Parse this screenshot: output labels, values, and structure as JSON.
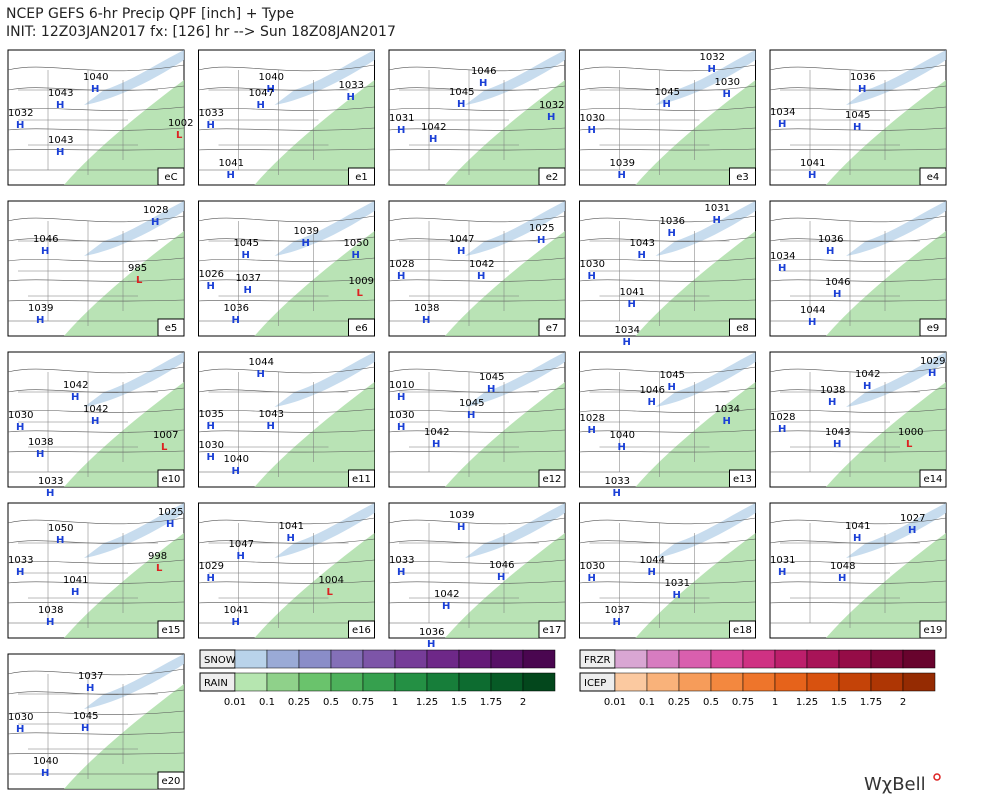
{
  "header": {
    "line1": "NCEP GEFS 6-hr Precip QPF [inch] + Type",
    "line2": "INIT: 12Z03JAN2017 fx: [126] hr --> Sun 18Z08JAN2017"
  },
  "panels": [
    {
      "name": "eC",
      "centers": [
        {
          "value": "1040",
          "symbol": "H"
        },
        {
          "value": "1043",
          "symbol": "H"
        },
        {
          "value": "1032",
          "symbol": "H"
        },
        {
          "value": "1043",
          "symbol": "H"
        },
        {
          "value": "1002",
          "symbol": "L"
        }
      ]
    },
    {
      "name": "e1",
      "centers": [
        {
          "value": "1040",
          "symbol": "H"
        },
        {
          "value": "1047",
          "symbol": "H"
        },
        {
          "value": "1033",
          "symbol": "H"
        },
        {
          "value": "1041",
          "symbol": "H"
        },
        {
          "value": "1033",
          "symbol": "H"
        }
      ]
    },
    {
      "name": "e2",
      "centers": [
        {
          "value": "1046",
          "symbol": "H"
        },
        {
          "value": "1045",
          "symbol": "H"
        },
        {
          "value": "1031",
          "symbol": "H"
        },
        {
          "value": "1042",
          "symbol": "H"
        },
        {
          "value": "1032",
          "symbol": "H"
        }
      ]
    },
    {
      "name": "e3",
      "centers": [
        {
          "value": "1032",
          "symbol": "H"
        },
        {
          "value": "1030",
          "symbol": "H"
        },
        {
          "value": "1045",
          "symbol": "H"
        },
        {
          "value": "1030",
          "symbol": "H"
        },
        {
          "value": "1039",
          "symbol": "H"
        }
      ]
    },
    {
      "name": "e4",
      "centers": [
        {
          "value": "1036",
          "symbol": "H"
        },
        {
          "value": "1045",
          "symbol": "H"
        },
        {
          "value": "1034",
          "symbol": "H"
        },
        {
          "value": "1041",
          "symbol": "H"
        }
      ]
    },
    {
      "name": "e5",
      "centers": [
        {
          "value": "1028",
          "symbol": "H"
        },
        {
          "value": "1046",
          "symbol": "H"
        },
        {
          "value": "1039",
          "symbol": "H"
        },
        {
          "value": "985",
          "symbol": "L"
        }
      ]
    },
    {
      "name": "e6",
      "centers": [
        {
          "value": "1039",
          "symbol": "H"
        },
        {
          "value": "1045",
          "symbol": "H"
        },
        {
          "value": "1050",
          "symbol": "H"
        },
        {
          "value": "1026",
          "symbol": "H"
        },
        {
          "value": "1037",
          "symbol": "H"
        },
        {
          "value": "1036",
          "symbol": "H"
        },
        {
          "value": "1009",
          "symbol": "L"
        }
      ]
    },
    {
      "name": "e7",
      "centers": [
        {
          "value": "1025",
          "symbol": "H"
        },
        {
          "value": "1047",
          "symbol": "H"
        },
        {
          "value": "1042",
          "symbol": "H"
        },
        {
          "value": "1028",
          "symbol": "H"
        },
        {
          "value": "1038",
          "symbol": "H"
        }
      ]
    },
    {
      "name": "e8",
      "centers": [
        {
          "value": "1031",
          "symbol": "H"
        },
        {
          "value": "1036",
          "symbol": "H"
        },
        {
          "value": "1043",
          "symbol": "H"
        },
        {
          "value": "1030",
          "symbol": "H"
        },
        {
          "value": "1041",
          "symbol": "H"
        },
        {
          "value": "1034",
          "symbol": "H"
        }
      ]
    },
    {
      "name": "e9",
      "centers": [
        {
          "value": "1036",
          "symbol": "H"
        },
        {
          "value": "1034",
          "symbol": "H"
        },
        {
          "value": "1046",
          "symbol": "H"
        },
        {
          "value": "1044",
          "symbol": "H"
        }
      ]
    },
    {
      "name": "e10",
      "centers": [
        {
          "value": "1042",
          "symbol": "H"
        },
        {
          "value": "1042",
          "symbol": "H"
        },
        {
          "value": "1030",
          "symbol": "H"
        },
        {
          "value": "1038",
          "symbol": "H"
        },
        {
          "value": "1007",
          "symbol": "L"
        },
        {
          "value": "1033",
          "symbol": "H"
        }
      ]
    },
    {
      "name": "e11",
      "centers": [
        {
          "value": "1044",
          "symbol": "H"
        },
        {
          "value": "1043",
          "symbol": "H"
        },
        {
          "value": "1035",
          "symbol": "H"
        },
        {
          "value": "1030",
          "symbol": "H"
        },
        {
          "value": "1040",
          "symbol": "H"
        }
      ]
    },
    {
      "name": "e12",
      "centers": [
        {
          "value": "1010",
          "symbol": "H"
        },
        {
          "value": "1045",
          "symbol": "H"
        },
        {
          "value": "1045",
          "symbol": "H"
        },
        {
          "value": "1030",
          "symbol": "H"
        },
        {
          "value": "1042",
          "symbol": "H"
        }
      ]
    },
    {
      "name": "e13",
      "centers": [
        {
          "value": "1045",
          "symbol": "H"
        },
        {
          "value": "1046",
          "symbol": "H"
        },
        {
          "value": "1034",
          "symbol": "H"
        },
        {
          "value": "1028",
          "symbol": "H"
        },
        {
          "value": "1040",
          "symbol": "H"
        },
        {
          "value": "1033",
          "symbol": "H"
        }
      ]
    },
    {
      "name": "e14",
      "centers": [
        {
          "value": "1029",
          "symbol": "H"
        },
        {
          "value": "1042",
          "symbol": "H"
        },
        {
          "value": "1038",
          "symbol": "H"
        },
        {
          "value": "1028",
          "symbol": "H"
        },
        {
          "value": "1043",
          "symbol": "H"
        },
        {
          "value": "1000",
          "symbol": "L"
        }
      ]
    },
    {
      "name": "e15",
      "centers": [
        {
          "value": "1025",
          "symbol": "H"
        },
        {
          "value": "1050",
          "symbol": "H"
        },
        {
          "value": "1033",
          "symbol": "H"
        },
        {
          "value": "998",
          "symbol": "L"
        },
        {
          "value": "1041",
          "symbol": "H"
        },
        {
          "value": "1038",
          "symbol": "H"
        }
      ]
    },
    {
      "name": "e16",
      "centers": [
        {
          "value": "1041",
          "symbol": "H"
        },
        {
          "value": "1047",
          "symbol": "H"
        },
        {
          "value": "1029",
          "symbol": "H"
        },
        {
          "value": "1004",
          "symbol": "L"
        },
        {
          "value": "1041",
          "symbol": "H"
        }
      ]
    },
    {
      "name": "e17",
      "centers": [
        {
          "value": "1039",
          "symbol": "H"
        },
        {
          "value": "1033",
          "symbol": "H"
        },
        {
          "value": "1046",
          "symbol": "H"
        },
        {
          "value": "1042",
          "symbol": "H"
        },
        {
          "value": "1036",
          "symbol": "H"
        }
      ]
    },
    {
      "name": "e18",
      "centers": [
        {
          "value": "1044",
          "symbol": "H"
        },
        {
          "value": "1030",
          "symbol": "H"
        },
        {
          "value": "1031",
          "symbol": "H"
        },
        {
          "value": "1037",
          "symbol": "H"
        }
      ]
    },
    {
      "name": "e19",
      "centers": [
        {
          "value": "1041",
          "symbol": "H"
        },
        {
          "value": "1027",
          "symbol": "H"
        },
        {
          "value": "1031",
          "symbol": "H"
        },
        {
          "value": "1048",
          "symbol": "H"
        }
      ]
    },
    {
      "name": "e20",
      "centers": [
        {
          "value": "1037",
          "symbol": "H"
        },
        {
          "value": "1030",
          "symbol": "H"
        },
        {
          "value": "1045",
          "symbol": "H"
        },
        {
          "value": "1040",
          "symbol": "H"
        }
      ]
    }
  ],
  "legend": {
    "ticks": [
      "0.01",
      "0.1",
      "0.25",
      "0.5",
      "0.75",
      "1",
      "1.25",
      "1.5",
      "1.75",
      "2"
    ],
    "rows": [
      {
        "label": "SNOW",
        "colors": [
          "#b9d3ea",
          "#9aaad6",
          "#8a8dc8",
          "#8470b8",
          "#7d55a8",
          "#763c98",
          "#6e2888",
          "#651a78",
          "#571066",
          "#4a0650"
        ]
      },
      {
        "label": "RAIN",
        "colors": [
          "#b6e6b0",
          "#8fd18a",
          "#6ac36c",
          "#4db15b",
          "#36a04e",
          "#249044",
          "#177e3a",
          "#0d6c30",
          "#075a26",
          "#03471c"
        ]
      },
      {
        "label": "FRZR",
        "colors": [
          "#d9a6d3",
          "#d77cc0",
          "#d95fae",
          "#d8479b",
          "#cf3183",
          "#bd1f6c",
          "#a81458",
          "#950c47",
          "#7e073a",
          "#68032d"
        ]
      },
      {
        "label": "ICEP",
        "colors": [
          "#fbc9a0",
          "#f9b27a",
          "#f69c5a",
          "#f3883f",
          "#ee752b",
          "#e6631b",
          "#d8520f",
          "#c44308",
          "#ae3604",
          "#952b02"
        ]
      }
    ]
  },
  "logo": "WχBell"
}
